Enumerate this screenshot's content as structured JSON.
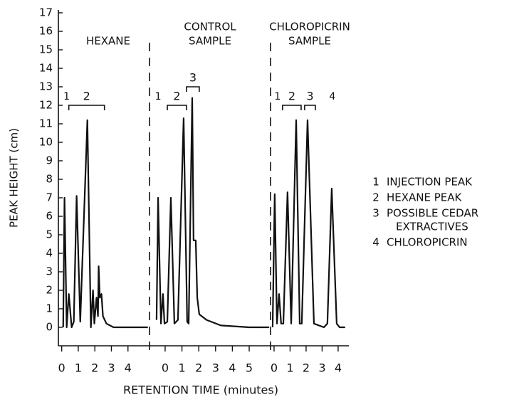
{
  "chart_data": {
    "type": "line",
    "ylabel": "PEAK HEIGHT (cm)",
    "xlabel": "RETENTION TIME (minutes)",
    "ylim": [
      0,
      17
    ],
    "yticks": [
      0,
      1,
      2,
      3,
      4,
      5,
      6,
      7,
      8,
      9,
      10,
      11,
      12,
      13,
      14,
      15,
      16,
      17
    ],
    "panels": [
      {
        "title": [
          "HEXANE"
        ],
        "xlim": [
          -0.2,
          5.3
        ],
        "xticks": [
          0,
          1,
          2,
          3,
          4
        ],
        "x": [
          0.09,
          0.17,
          0.3,
          0.43,
          0.6,
          0.73,
          0.9,
          1.12,
          1.55,
          1.76,
          1.89,
          1.97,
          2.1,
          2.19,
          2.23,
          2.3,
          2.4,
          2.49,
          2.7,
          3.13,
          5.2
        ],
        "values": [
          0,
          7,
          0,
          1.8,
          0,
          0.3,
          7.1,
          0.3,
          11.2,
          0,
          2,
          0.2,
          1.6,
          0.6,
          3.3,
          1.6,
          1.8,
          0.6,
          0.2,
          0,
          0
        ],
        "annotations": [
          {
            "text": "1",
            "x": 0.3,
            "y": 12.3
          },
          {
            "text": "2",
            "x": 0.43,
            "x2": 2.58,
            "y": 12
          }
        ]
      },
      {
        "title": [
          "CONTROL",
          "SAMPLE"
        ],
        "xlim": [
          -0.93,
          6.27
        ],
        "xticks": [
          0,
          1,
          2,
          3,
          4,
          5
        ],
        "x": [
          -0.51,
          -0.42,
          -0.25,
          -0.13,
          -0.04,
          0.13,
          0.34,
          0.55,
          0.76,
          1.1,
          1.31,
          1.4,
          1.61,
          1.69,
          1.82,
          1.91,
          2.03,
          2.46,
          3.31,
          5.0,
          6.19
        ],
        "values": [
          0.4,
          7,
          0.2,
          1.8,
          0.2,
          0.3,
          7,
          0.2,
          0.4,
          11.3,
          0.3,
          0.2,
          12.4,
          4.7,
          4.7,
          1.6,
          0.7,
          0.4,
          0.1,
          0,
          0
        ],
        "annotations": [
          {
            "text": "1",
            "x": -0.42,
            "y": 12.3
          },
          {
            "text": "2",
            "x": 0.13,
            "x2": 1.27,
            "y": 12
          },
          {
            "text": "3",
            "x": 1.27,
            "x2": 2.03,
            "y": 13
          }
        ]
      },
      {
        "title": [
          "CHLOROPICRIN",
          "SAMPLE"
        ],
        "xlim": [
          -0.22,
          4.67
        ],
        "xticks": [
          0,
          1,
          2,
          3,
          4
        ],
        "x": [
          -0.09,
          0.04,
          0.18,
          0.31,
          0.44,
          0.58,
          0.84,
          1.07,
          1.38,
          1.6,
          1.73,
          2.09,
          2.49,
          3.11,
          3.33,
          3.6,
          3.91,
          4.09,
          4.44
        ],
        "values": [
          0,
          7.2,
          0.2,
          1.8,
          0.2,
          0.2,
          7.3,
          0.2,
          11.2,
          0.2,
          0.2,
          11.2,
          0.2,
          0,
          0.2,
          7.5,
          0.2,
          0,
          0
        ],
        "annotations": [
          {
            "text": "1",
            "x": 0.22,
            "y": 12.3
          },
          {
            "text": "2",
            "x": 0.53,
            "x2": 1.69,
            "y": 12
          },
          {
            "text": "3",
            "x": 1.91,
            "x2": 2.58,
            "y": 12
          },
          {
            "text": "4",
            "x": 3.64,
            "y": 12.3
          }
        ]
      }
    ],
    "legend": [
      {
        "symbol": "1",
        "text": [
          "INJECTION PEAK"
        ]
      },
      {
        "symbol": "2",
        "text": [
          "HEXANE PEAK"
        ]
      },
      {
        "symbol": "3",
        "text": [
          "POSSIBLE CEDAR",
          "EXTRACTIVES"
        ]
      },
      {
        "symbol": "4",
        "text": [
          "CHLOROPICRIN"
        ]
      }
    ]
  }
}
